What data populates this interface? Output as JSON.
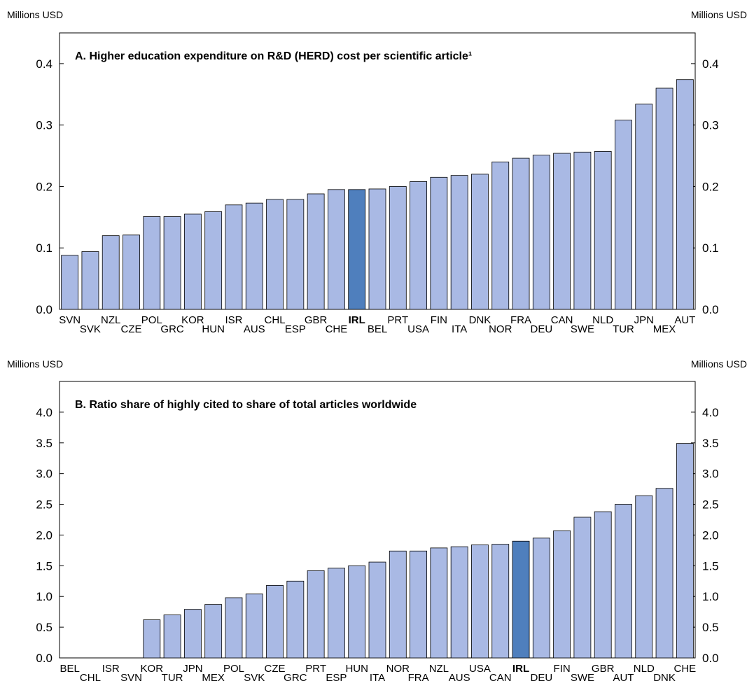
{
  "chart_data": [
    {
      "type": "bar",
      "title": "A. Higher education expenditure on R&D (HERD) cost per scientific article¹",
      "ylabel_left": "Millions USD",
      "ylabel_right": "Millions USD",
      "ylim": [
        0,
        0.45
      ],
      "yticks": [
        "0.0",
        "0.1",
        "0.2",
        "0.3",
        "0.4"
      ],
      "ytick_values": [
        0,
        0.1,
        0.2,
        0.3,
        0.4
      ],
      "categories": [
        "SVN",
        "SVK",
        "NZL",
        "CZE",
        "POL",
        "GRC",
        "KOR",
        "HUN",
        "ISR",
        "AUS",
        "CHL",
        "ESP",
        "GBR",
        "CHE",
        "IRL",
        "BEL",
        "PRT",
        "USA",
        "FIN",
        "ITA",
        "DNK",
        "NOR",
        "FRA",
        "DEU",
        "CAN",
        "SWE",
        "NLD",
        "TUR",
        "JPN",
        "MEX",
        "AUT"
      ],
      "values": [
        0.088,
        0.094,
        0.12,
        0.121,
        0.151,
        0.151,
        0.155,
        0.159,
        0.17,
        0.173,
        0.179,
        0.179,
        0.188,
        0.195,
        0.195,
        0.196,
        0.2,
        0.208,
        0.215,
        0.218,
        0.22,
        0.24,
        0.246,
        0.251,
        0.254,
        0.256,
        0.257,
        0.308,
        0.334,
        0.36,
        0.374
      ],
      "highlight": "IRL",
      "grid": false,
      "colors": {
        "bar": "#a9b9e4",
        "highlight": "#4f7fbd",
        "edge": "#000000"
      }
    },
    {
      "type": "bar",
      "title": "B. Ratio share of highly cited to share of total articles worldwide",
      "ylabel_left": "Millions USD",
      "ylabel_right": "Millions USD",
      "ylim": [
        0,
        4.5
      ],
      "yticks": [
        "0.0",
        "0.5",
        "1.0",
        "1.5",
        "2.0",
        "2.5",
        "3.0",
        "3.5",
        "4.0"
      ],
      "ytick_values": [
        0,
        0.5,
        1.0,
        1.5,
        2.0,
        2.5,
        3.0,
        3.5,
        4.0
      ],
      "categories": [
        "BEL",
        "CHL",
        "ISR",
        "SVN",
        "KOR",
        "TUR",
        "JPN",
        "MEX",
        "POL",
        "SVK",
        "CZE",
        "GRC",
        "PRT",
        "ESP",
        "HUN",
        "ITA",
        "NOR",
        "FRA",
        "NZL",
        "AUS",
        "USA",
        "CAN",
        "IRL",
        "DEU",
        "FIN",
        "SWE",
        "GBR",
        "AUT",
        "NLD",
        "DNK",
        "CHE"
      ],
      "values": [
        null,
        null,
        null,
        null,
        0.62,
        0.7,
        0.79,
        0.87,
        0.98,
        1.04,
        1.18,
        1.25,
        1.42,
        1.46,
        1.5,
        1.56,
        1.74,
        1.74,
        1.79,
        1.81,
        1.84,
        1.85,
        1.9,
        1.95,
        2.07,
        2.29,
        2.38,
        2.5,
        2.64,
        2.76,
        3.49
      ],
      "highlight": "IRL",
      "grid": false,
      "colors": {
        "bar": "#a9b9e4",
        "highlight": "#4f7fbd",
        "edge": "#000000"
      }
    }
  ]
}
